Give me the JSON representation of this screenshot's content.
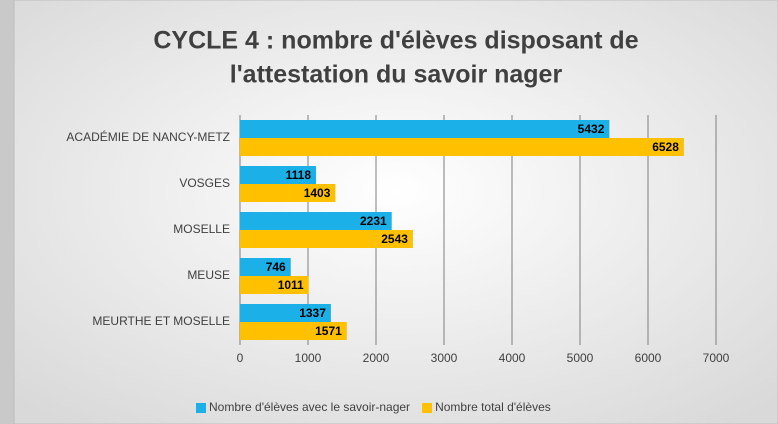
{
  "chart_data": {
    "type": "hbar",
    "title": [
      "CYCLE 4 : nombre d'élèves disposant de",
      "l'attestation du savoir nager"
    ],
    "categories": [
      "ACADÉMIE DE NANCY-METZ",
      "VOSGES",
      "MOSELLE",
      "MEUSE",
      "MEURTHE ET MOSELLE"
    ],
    "series": [
      {
        "name": "Nombre d'élèves avec le savoir-nager",
        "color": "#1cb0e8",
        "values": [
          5432,
          1118,
          2231,
          746,
          1337
        ]
      },
      {
        "name": "Nombre total d'élèves",
        "color": "#ffc000",
        "values": [
          6528,
          1403,
          2543,
          1011,
          1571
        ]
      }
    ],
    "xlim": [
      0,
      7000
    ],
    "xticks": [
      0,
      1000,
      2000,
      3000,
      4000,
      5000,
      6000,
      7000
    ],
    "grid": true,
    "legend": "bottom"
  }
}
